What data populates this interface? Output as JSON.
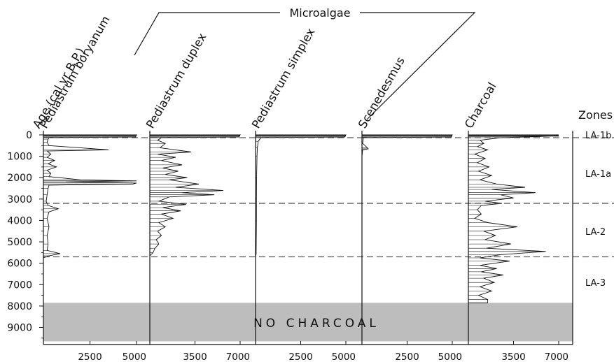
{
  "chart_data": {
    "type": "area",
    "group_label": "Microalgae",
    "y_axis": {
      "label": "Age (cal yr B.P.)",
      "min": 0,
      "max": 9800,
      "reversed": true,
      "ticks": [
        0,
        1000,
        2000,
        3000,
        4000,
        5000,
        6000,
        7000,
        8000,
        9000
      ]
    },
    "zones": {
      "title": "Zones",
      "boundaries": [
        130,
        3200,
        5700
      ],
      "labels": [
        {
          "text": "LA-1b",
          "age": 0
        },
        {
          "text": "LA-1a",
          "age": 1800
        },
        {
          "text": "LA-2",
          "age": 4500
        },
        {
          "text": "LA-3",
          "age": 6900
        }
      ]
    },
    "no_data_band": {
      "label": "NO CHARCOAL",
      "from": 7850,
      "to": 9650
    },
    "panels": [
      {
        "name": "Pediastrum boryanum",
        "xmax": 5000,
        "ticks": [
          2500,
          5000
        ],
        "samples": [
          [
            0,
            5000
          ],
          [
            60,
            4950
          ],
          [
            100,
            4950
          ],
          [
            130,
            300
          ],
          [
            200,
            250
          ],
          [
            350,
            200
          ],
          [
            500,
            300
          ],
          [
            700,
            3500
          ],
          [
            750,
            200
          ],
          [
            900,
            400
          ],
          [
            1050,
            200
          ],
          [
            1200,
            600
          ],
          [
            1350,
            250
          ],
          [
            1500,
            700
          ],
          [
            1650,
            200
          ],
          [
            1800,
            400
          ],
          [
            1950,
            300
          ],
          [
            2100,
            2000
          ],
          [
            2150,
            5000
          ],
          [
            2200,
            1200
          ],
          [
            2250,
            5000
          ],
          [
            2300,
            4800
          ],
          [
            2350,
            300
          ],
          [
            2500,
            250
          ],
          [
            2800,
            200
          ],
          [
            3100,
            150
          ],
          [
            3300,
            250
          ],
          [
            3450,
            800
          ],
          [
            3600,
            300
          ],
          [
            3900,
            200
          ],
          [
            4300,
            300
          ],
          [
            4700,
            200
          ],
          [
            5100,
            250
          ],
          [
            5400,
            200
          ],
          [
            5550,
            900
          ],
          [
            5650,
            300
          ],
          [
            5750,
            0
          ]
        ]
      },
      {
        "name": "Pediastrum duplex",
        "xmax": 7000,
        "ticks": [
          3500,
          7000
        ],
        "samples": [
          [
            0,
            7000
          ],
          [
            60,
            6900
          ],
          [
            100,
            6900
          ],
          [
            130,
            900
          ],
          [
            250,
            600
          ],
          [
            400,
            1200
          ],
          [
            600,
            800
          ],
          [
            800,
            3200
          ],
          [
            900,
            600
          ],
          [
            1050,
            2000
          ],
          [
            1200,
            900
          ],
          [
            1400,
            2500
          ],
          [
            1550,
            1000
          ],
          [
            1700,
            2200
          ],
          [
            1850,
            1200
          ],
          [
            2000,
            2900
          ],
          [
            2100,
            1500
          ],
          [
            2300,
            3800
          ],
          [
            2450,
            2000
          ],
          [
            2600,
            5700
          ],
          [
            2700,
            2500
          ],
          [
            2800,
            5000
          ],
          [
            2900,
            1500
          ],
          [
            3100,
            700
          ],
          [
            3250,
            2800
          ],
          [
            3400,
            1000
          ],
          [
            3550,
            2400
          ],
          [
            3700,
            900
          ],
          [
            3900,
            1800
          ],
          [
            4100,
            700
          ],
          [
            4300,
            1200
          ],
          [
            4500,
            600
          ],
          [
            4700,
            900
          ],
          [
            4900,
            500
          ],
          [
            5100,
            700
          ],
          [
            5300,
            400
          ],
          [
            5500,
            250
          ],
          [
            5650,
            0
          ]
        ]
      },
      {
        "name": "Pediastrum simplex",
        "xmax": 5000,
        "ticks": [
          2500,
          5000
        ],
        "samples": [
          [
            0,
            5000
          ],
          [
            60,
            4950
          ],
          [
            100,
            4950
          ],
          [
            130,
            300
          ],
          [
            300,
            150
          ],
          [
            600,
            100
          ],
          [
            1000,
            80
          ],
          [
            2000,
            60
          ],
          [
            3000,
            50
          ],
          [
            4000,
            50
          ],
          [
            5000,
            40
          ],
          [
            5600,
            30
          ],
          [
            5650,
            0
          ]
        ]
      },
      {
        "name": "Scenedesmus",
        "xmax": 5000,
        "ticks": [
          2500,
          5000
        ],
        "samples": [
          [
            0,
            5000
          ],
          [
            60,
            4950
          ],
          [
            100,
            4950
          ],
          [
            130,
            80
          ],
          [
            400,
            40
          ],
          [
            600,
            300
          ],
          [
            650,
            350
          ],
          [
            700,
            40
          ],
          [
            1000,
            0
          ]
        ]
      },
      {
        "name": "Charcoal",
        "xmax": 7000,
        "ticks": [
          3500,
          7000
        ],
        "samples": [
          [
            0,
            7000
          ],
          [
            40,
            6800
          ],
          [
            80,
            5500
          ],
          [
            130,
            2500
          ],
          [
            250,
            900
          ],
          [
            400,
            1200
          ],
          [
            550,
            700
          ],
          [
            700,
            1500
          ],
          [
            900,
            500
          ],
          [
            1100,
            1300
          ],
          [
            1300,
            700
          ],
          [
            1500,
            1600
          ],
          [
            1700,
            800
          ],
          [
            1900,
            1800
          ],
          [
            2100,
            900
          ],
          [
            2300,
            2200
          ],
          [
            2450,
            4400
          ],
          [
            2550,
            1800
          ],
          [
            2700,
            5200
          ],
          [
            2800,
            2500
          ],
          [
            2950,
            3500
          ],
          [
            3100,
            1300
          ],
          [
            3200,
            2600
          ],
          [
            3300,
            1000
          ],
          [
            3500,
            700
          ],
          [
            3700,
            1000
          ],
          [
            3900,
            500
          ],
          [
            4100,
            1500
          ],
          [
            4300,
            3800
          ],
          [
            4500,
            1200
          ],
          [
            4700,
            2100
          ],
          [
            4900,
            1300
          ],
          [
            5100,
            3300
          ],
          [
            5300,
            1400
          ],
          [
            5450,
            6000
          ],
          [
            5600,
            2500
          ],
          [
            5750,
            900
          ],
          [
            5900,
            3200
          ],
          [
            6100,
            900
          ],
          [
            6250,
            2200
          ],
          [
            6400,
            1000
          ],
          [
            6550,
            2700
          ],
          [
            6700,
            1200
          ],
          [
            6900,
            2000
          ],
          [
            7100,
            900
          ],
          [
            7300,
            1800
          ],
          [
            7500,
            800
          ],
          [
            7700,
            1500
          ],
          [
            7850,
            1500
          ]
        ]
      }
    ]
  }
}
